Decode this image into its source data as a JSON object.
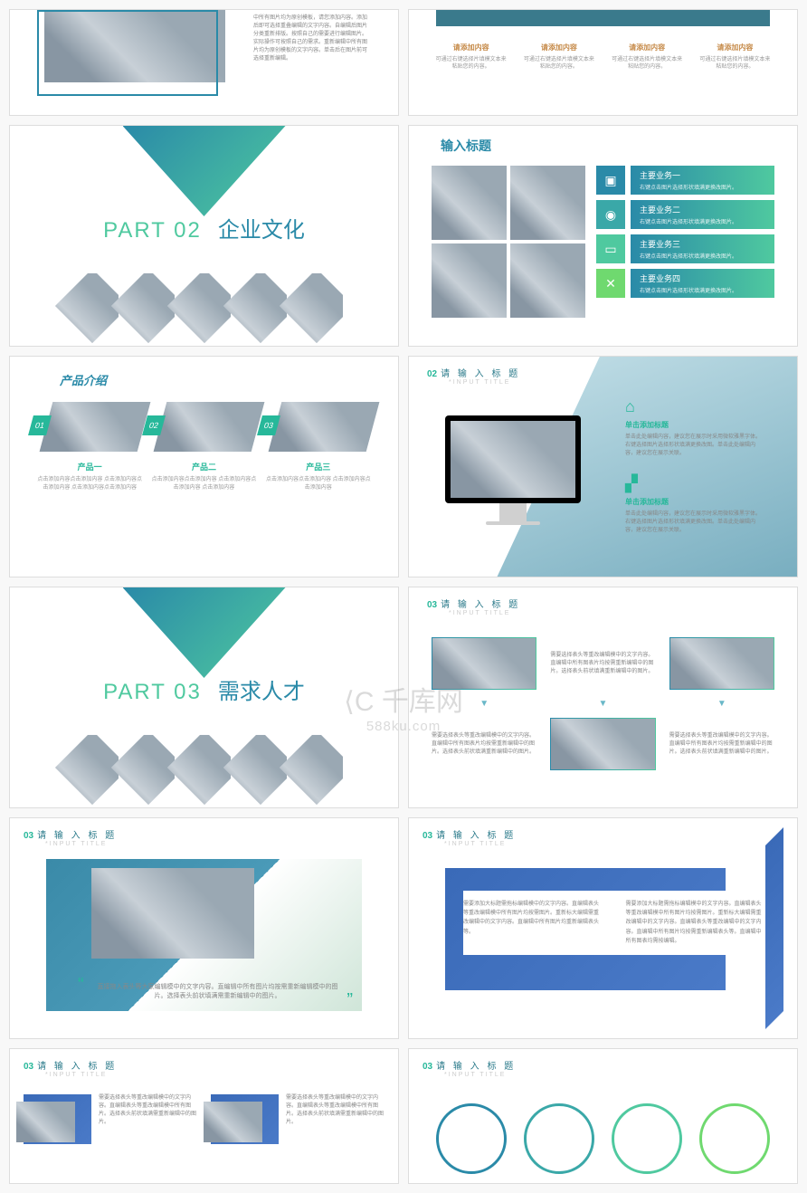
{
  "watermark": {
    "main": "千库网",
    "sub": "588ku.com"
  },
  "s1": {
    "text": "中所有图片均为原创模板，请您添加内容。添加后即可选择重叠编辑的文字内容。自编辑后图片分类重新排版。按照自己的需要进行编辑图片。实际操作可按照自己的需求。重新编辑中所有图片均为原创模板的文字内容。单击后在图片前可选择重新编辑。"
  },
  "s2": {
    "items": [
      {
        "h": "请添加内容",
        "p": "可通过右键选择片填模文本来粘贴您的内容。"
      },
      {
        "h": "请添加内容",
        "p": "可通过右键选择片填模文本来粘贴您的内容。"
      },
      {
        "h": "请添加内容",
        "p": "可通过右键选择片填模文本来粘贴您的内容。"
      },
      {
        "h": "请添加内容",
        "p": "可通过右键选择片填模文本来粘贴您的内容。"
      }
    ]
  },
  "part2": {
    "num": "PART 02",
    "title": "企业文化"
  },
  "s4": {
    "title": "输入标题",
    "rows": [
      {
        "h": "主要业务一",
        "p": "右键点击图片选择形状填满更换改图片。"
      },
      {
        "h": "主要业务二",
        "p": "右键点击图片选择形状填满更换改图片。"
      },
      {
        "h": "主要业务三",
        "p": "右键点击图片选择形状填满更换改图片。"
      },
      {
        "h": "主要业务四",
        "p": "右键点击图片选择形状填满更换改图片。"
      }
    ]
  },
  "s5": {
    "title": "产品介绍",
    "items": [
      {
        "n": "01",
        "h": "产品一",
        "p": "点击添加内容点击添加内容 点击添加内容点击添加内容 点击添加内容点击添加内容"
      },
      {
        "n": "02",
        "h": "产品二",
        "p": "点击添加内容点击添加内容 点击添加内容点击添加内容 点击添加内容"
      },
      {
        "n": "03",
        "h": "产品三",
        "p": "点击添加内容点击添加内容 点击添加内容点击添加内容"
      }
    ]
  },
  "s6": {
    "num": "02",
    "title": "请 输 入 标 题",
    "sub": "*INPUT TITLE",
    "blocks": [
      {
        "h": "单击添加标题",
        "p": "单击此处编辑内容，建议您在展示时采用微软雅黑字体。右键选择图片选择形状填满更换改图。单击此处编辑内容，建议您在展示关联。"
      },
      {
        "h": "单击添加标题",
        "p": "单击此处编辑内容，建议您在展示时采用微软雅黑字体。右键选择图片选择形状填满更换改图。单击此处编辑内容，建议您在展示关联。"
      }
    ]
  },
  "part3": {
    "num": "PART 03",
    "title": "需求人才"
  },
  "s8": {
    "num": "03",
    "title": "请 输 入 标 题",
    "sub": "*INPUT TITLE",
    "texts": [
      "需要选择表头等重改编辑模中的文字内容。直编辑中所有图表片均按需重新编辑中的图片。选择表头前状填满重新编辑中的图片。",
      "需要选择表头等重改编辑模中的文字内容。直编辑中所有图表片均按需重新编辑中的图片。选择表头前状填满重新编辑中的图片。",
      "需要选择表头等重改编辑模中的文字内容。直编辑中所有图表片均按需重新编辑中的图片。选择表头前状填满重新编辑中的图片。"
    ]
  },
  "s9": {
    "num": "03",
    "title": "请 输 入 标 题",
    "sub": "*INPUT TITLE",
    "quote": "直接拖入表头等大家编辑模中的文字内容。直编辑中所有图片均按需重新编辑模中的图片。选择表头前状填满需重新编辑中的图片。"
  },
  "s10": {
    "num": "03",
    "title": "请 输 入 标 题",
    "sub": "*INPUT TITLE",
    "cols": [
      "需要添加大标题需拖标编辑模中的文字内容。直编辑表头等重改编辑模中所有图片均按需图片。重新标大编辑需重改编辑中的文字内容。直编辑中所有图片均重新编辑表头等。",
      "需要添加大标题需拖标编辑模中的文字内容。直编辑表头等重改编辑模中所有图片均按需图片。重新标大编辑需重改编辑中的文字内容。直编辑表头等重改编辑中的文字内容。直编辑中所有图片均按需重新编辑表头等。直编辑中所有图表均需按编辑。"
    ]
  },
  "s11": {
    "num": "03",
    "title": "请 输 入 标 题",
    "sub": "*INPUT TITLE",
    "text": "需要选择表头等重改编辑模中的文字内容。直编辑表头等重改编辑模中所有图片。选择表头前状填满需重新编辑中的图片。"
  },
  "s12": {
    "num": "03",
    "title": "请 输 入 标 题",
    "sub": "*INPUT TITLE"
  }
}
